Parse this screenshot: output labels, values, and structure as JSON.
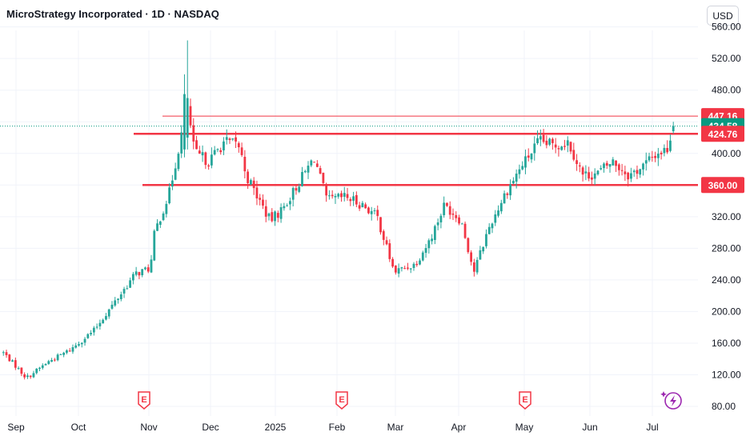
{
  "header": {
    "title": "MicroStrategy Incorporated · 1D · NASDAQ",
    "currency": "USD"
  },
  "colors": {
    "up": "#26a69a",
    "down": "#f23645",
    "level": "#f23645",
    "grid": "#f0f3fa",
    "current": "#089981"
  },
  "chart_data": {
    "type": "candlestick",
    "title": "MicroStrategy Incorporated",
    "interval": "1D",
    "exchange": "NASDAQ",
    "x_tick_labels": [
      "Sep",
      "Oct",
      "Nov",
      "Dec",
      "2025",
      "Feb",
      "Mar",
      "Apr",
      "May",
      "Jun",
      "Jul"
    ],
    "y_tick_labels": [
      "80.00",
      "120.00",
      "160.00",
      "200.00",
      "240.00",
      "280.00",
      "320.00",
      "360.00",
      "400.00",
      "440.00",
      "480.00",
      "520.00",
      "560.00"
    ],
    "ylim": [
      70,
      568
    ],
    "grid": true,
    "price_labels": [
      {
        "value": 447.16,
        "label": "447.16",
        "color": "#f23645"
      },
      {
        "value": 434.58,
        "label": "434.58",
        "color": "#089981"
      },
      {
        "value": 424.76,
        "label": "424.76",
        "color": "#f23645"
      },
      {
        "value": 360.0,
        "label": "360.00",
        "color": "#f23645"
      }
    ],
    "horizontal_levels": [
      {
        "value": 447.16,
        "style": "thin",
        "start": "Nov"
      },
      {
        "value": 424.76,
        "style": "thick",
        "start": "Oct"
      },
      {
        "value": 360.0,
        "style": "thick",
        "start": "Oct"
      }
    ],
    "current_price": 434.58,
    "earnings_markers": [
      "Oct 30",
      "Feb 5",
      "May 1"
    ],
    "icons": [
      "earnings-icon",
      "lightning-icon"
    ],
    "anchors": [
      {
        "t": "Aug 26",
        "p": 148
      },
      {
        "t": "Sep 6",
        "p": 116
      },
      {
        "t": "Sep 16",
        "p": 136
      },
      {
        "t": "Sep 27",
        "p": 152
      },
      {
        "t": "Oct 8",
        "p": 176
      },
      {
        "t": "Oct 18",
        "p": 212
      },
      {
        "t": "Oct 28",
        "p": 248
      },
      {
        "t": "Nov 4",
        "p": 255
      },
      {
        "t": "Nov 6",
        "p": 300
      },
      {
        "t": "Nov 13",
        "p": 350
      },
      {
        "t": "Nov 20",
        "p": 440
      },
      {
        "t": "Nov 21",
        "p": 470
      },
      {
        "t": "Nov 25",
        "p": 400
      },
      {
        "t": "Dec 2",
        "p": 390
      },
      {
        "t": "Dec 9",
        "p": 415
      },
      {
        "t": "Dec 16",
        "p": 410
      },
      {
        "t": "Dec 20",
        "p": 370
      },
      {
        "t": "Dec 31",
        "p": 315
      },
      {
        "t": "Jan 6",
        "p": 330
      },
      {
        "t": "Jan 13",
        "p": 360
      },
      {
        "t": "Jan 21",
        "p": 395
      },
      {
        "t": "Jan 27",
        "p": 340
      },
      {
        "t": "Feb 5",
        "p": 345
      },
      {
        "t": "Feb 13",
        "p": 335
      },
      {
        "t": "Feb 20",
        "p": 320
      },
      {
        "t": "Feb 28",
        "p": 250
      },
      {
        "t": "Mar 10",
        "p": 260
      },
      {
        "t": "Mar 17",
        "p": 290
      },
      {
        "t": "Mar 24",
        "p": 335
      },
      {
        "t": "Apr 1",
        "p": 315
      },
      {
        "t": "Apr 7",
        "p": 250
      },
      {
        "t": "Apr 14",
        "p": 305
      },
      {
        "t": "Apr 22",
        "p": 350
      },
      {
        "t": "Apr 30",
        "p": 385
      },
      {
        "t": "May 8",
        "p": 415
      },
      {
        "t": "May 15",
        "p": 410
      },
      {
        "t": "May 22",
        "p": 415
      },
      {
        "t": "May 29",
        "p": 372
      },
      {
        "t": "Jun 5",
        "p": 375
      },
      {
        "t": "Jun 12",
        "p": 390
      },
      {
        "t": "Jun 20",
        "p": 372
      },
      {
        "t": "Jun 27",
        "p": 385
      },
      {
        "t": "Jul 3",
        "p": 400
      },
      {
        "t": "Jul 8",
        "p": 405
      },
      {
        "t": "Jul 11",
        "p": 434.58
      }
    ]
  }
}
